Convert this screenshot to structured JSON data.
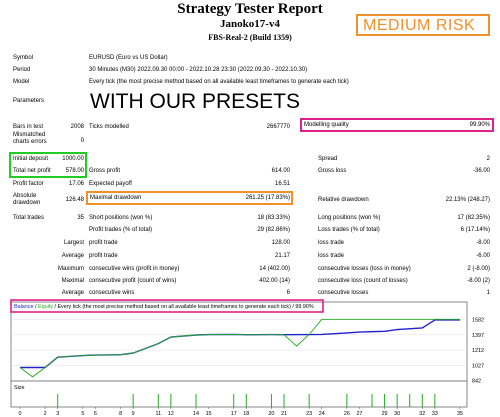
{
  "header": {
    "title": "Strategy Tester Report",
    "ea_name": "Janoko17-v4",
    "server": "FBS-Real-2 (Build 1359)",
    "risk_label": "MEDIUM RISK",
    "presets_label": "WITH OUR PRESETS"
  },
  "summary": {
    "symbol_label": "Symbol",
    "symbol_value": "EURUSD (Euro vs US Dollar)",
    "period_label": "Period",
    "period_value": "30 Minutes (M30) 2022.09.30 00:00 - 2022.10.28 23:30 (2022.09.30 - 2022.10.30)",
    "model_label": "Model",
    "model_value": "Every tick (the most precise method based on all available least timeframes to generate each tick)",
    "parameters_label": "Parameters"
  },
  "stats": {
    "bars_label": "Bars in test",
    "bars_value": "2008",
    "ticks_label": "Ticks modelled",
    "ticks_value": "2667770",
    "quality_label": "Modelling quality",
    "quality_value": "99.90%",
    "mismatch_label_1": "Mismatched",
    "mismatch_label_2": "charts errors",
    "mismatch_value": "0",
    "initial_label": "Initial deposit",
    "initial_value": "1000.00",
    "spread_label": "Spread",
    "spread_value": "2",
    "netprofit_label": "Total net profit",
    "netprofit_value": "578.00",
    "grossprofit_label": "Gross profit",
    "grossprofit_value": "614.00",
    "grossloss_label": "Gross loss",
    "grossloss_value": "-36.00",
    "pf_label": "Profit factor",
    "pf_value": "17.06",
    "payoff_label": "Expected payoff",
    "payoff_value": "16.51",
    "absdd_label_1": "Absolute",
    "absdd_label_2": "drawdown",
    "absdd_value": "126.48",
    "maxdd_label": "Maximal drawdown",
    "maxdd_value": "261.25 (17.83%)",
    "reldd_label": "Relative drawdown",
    "reldd_value": "22.13% (248.27)",
    "trades_label": "Total trades",
    "trades_value": "35",
    "short_label": "Short positions (won %)",
    "short_value": "18 (83.33%)",
    "long_label": "Long positions (won %)",
    "long_value": "17 (82.35%)",
    "profit_trades_label": "Profit trades (% of total)",
    "profit_trades_value": "29 (82.86%)",
    "loss_trades_label": "Loss trades (% of total)",
    "loss_trades_value": "6 (17.14%)",
    "largest_label": "Largest",
    "largest_profit_label": "profit trade",
    "largest_profit_value": "128.00",
    "largest_loss_label": "loss trade",
    "largest_loss_value": "-8.00",
    "average_label": "Average",
    "avg_profit_label": "profit trade",
    "avg_profit_value": "21.17",
    "avg_loss_label": "loss trade",
    "avg_loss_value": "-6.00",
    "maximum_label": "Maximum",
    "max_wins_money_label": "consecutive wins (profit in money)",
    "max_wins_money_value": "14 (402.00)",
    "max_losses_money_label": "consecutive losses (loss in money)",
    "max_losses_money_value": "2 (-8.00)",
    "maximal_label": "Maximal",
    "max_profit_count_label": "consecutive profit (count of wins)",
    "max_profit_count_value": "402.00 (14)",
    "max_loss_count_label": "consecutive loss (count of losses)",
    "max_loss_count_value": "-8.00 (2)",
    "avg2_label": "Average",
    "avg_wins_label": "consecutive wins",
    "avg_wins_value": "6",
    "avg_losses_label": "consecutive losses",
    "avg_losses_value": "1"
  },
  "chart_data": {
    "type": "line",
    "legend_balance": "Balance",
    "legend_sep": " / ",
    "legend_equity": "Equity",
    "legend_rest": " / Every tick (the most precise method based on all available least timeframes to generate each tick) / ",
    "legend_quality": "99.90%",
    "size_label": "Size",
    "balance_color": "#2222cc",
    "equity_color": "#22aa22",
    "ylim": [
      860,
      1650
    ],
    "y_ticks": [
      "1582",
      "1397",
      "1212",
      "1027",
      "842"
    ],
    "x_ticks": [
      "0",
      "2",
      "3",
      "5",
      "6",
      "8",
      "9",
      "11",
      "12",
      "14",
      "15",
      "17",
      "18",
      "20",
      "21",
      "23",
      "24",
      "26",
      "27",
      "29",
      "30",
      "32",
      "33",
      "35"
    ],
    "series": [
      {
        "name": "Balance",
        "x": [
          0,
          2,
          3,
          5,
          6,
          8,
          9,
          11,
          12,
          14,
          15,
          17,
          18,
          20,
          21,
          23,
          24,
          26,
          27,
          29,
          30,
          32,
          33,
          35
        ],
        "y": [
          1000,
          1000,
          1125,
          1145,
          1150,
          1155,
          1175,
          1290,
          1370,
          1395,
          1400,
          1402,
          1398,
          1400,
          1398,
          1400,
          1402,
          1420,
          1430,
          1440,
          1460,
          1480,
          1578,
          1578
        ]
      },
      {
        "name": "Equity",
        "x": [
          0,
          1,
          2,
          3,
          5,
          6,
          8,
          9,
          11,
          12,
          14,
          15,
          17,
          18,
          20,
          21,
          22,
          23,
          24,
          26,
          27,
          29,
          30,
          32,
          33,
          35
        ],
        "y": [
          1000,
          885,
          1000,
          1125,
          1145,
          1150,
          1155,
          1175,
          1290,
          1370,
          1395,
          1400,
          1402,
          1398,
          1400,
          1398,
          1260,
          1400,
          1585,
          1585,
          1585,
          1585,
          1585,
          1585,
          1585,
          1585
        ]
      }
    ],
    "size_bars_x": [
      3,
      9,
      11,
      12,
      14,
      17,
      18,
      20,
      21,
      23,
      26,
      28,
      29,
      30,
      31,
      32,
      33
    ]
  }
}
